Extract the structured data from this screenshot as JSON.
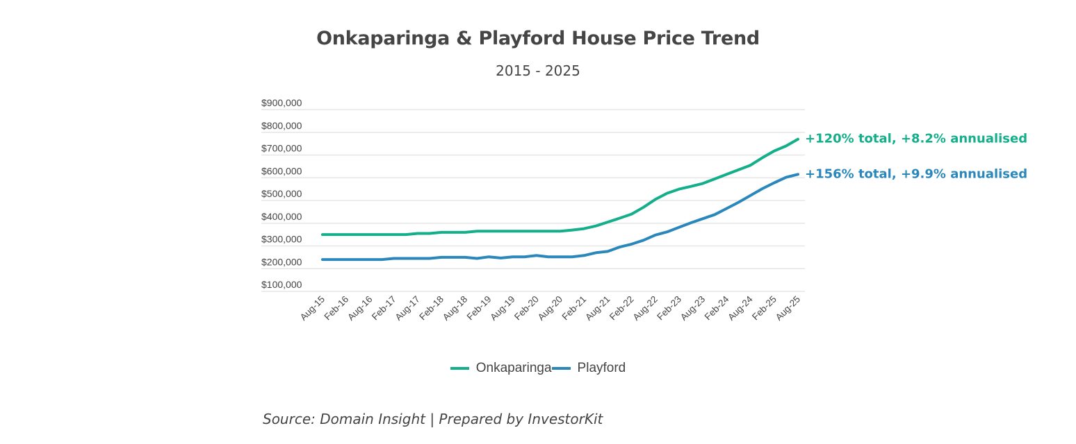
{
  "chart_data": {
    "type": "line",
    "title": "Onkaparinga & Playford House Price Trend",
    "subtitle": "2015 - 2025",
    "xlabel": "",
    "ylabel": "",
    "ylim": [
      100000,
      900000
    ],
    "yticks": [
      900000,
      800000,
      700000,
      600000,
      500000,
      400000,
      300000,
      200000,
      100000
    ],
    "ytick_labels": [
      "$900,000",
      "$800,000",
      "$700,000",
      "$600,000",
      "$500,000",
      "$400,000",
      "$300,000",
      "$200,000",
      "$100,000"
    ],
    "grid": true,
    "legend_position": "bottom-center",
    "x_tick_labels": [
      "Aug-15",
      "Feb-16",
      "Aug-16",
      "Feb-17",
      "Aug-17",
      "Feb-18",
      "Aug-18",
      "Feb-19",
      "Aug-19",
      "Feb-20",
      "Aug-20",
      "Feb-21",
      "Aug-21",
      "Feb-22",
      "Aug-22",
      "Feb-23",
      "Aug-23",
      "Feb-24",
      "Aug-24",
      "Feb-25",
      "Aug-25"
    ],
    "x_points_per_tick": 2,
    "series": [
      {
        "name": "Onkaparinga",
        "color": "#13ae8a",
        "annotation": "+120% total, +8.2% annualised",
        "values": [
          350000,
          350000,
          350000,
          350000,
          350000,
          350000,
          350000,
          350000,
          355000,
          355000,
          360000,
          360000,
          360000,
          365000,
          365000,
          365000,
          365000,
          365000,
          365000,
          365000,
          365000,
          370000,
          376000,
          388000,
          405000,
          422000,
          440000,
          470000,
          505000,
          532000,
          550000,
          562000,
          575000,
          595000,
          615000,
          635000,
          655000,
          688000,
          718000,
          740000,
          770000
        ]
      },
      {
        "name": "Playford",
        "color": "#2a87bb",
        "annotation": "+156% total, +9.9% annualised",
        "values": [
          240000,
          240000,
          240000,
          240000,
          240000,
          240000,
          245000,
          245000,
          245000,
          245000,
          250000,
          250000,
          250000,
          245000,
          252000,
          247000,
          252000,
          252000,
          258000,
          252000,
          252000,
          252000,
          258000,
          270000,
          276000,
          295000,
          308000,
          325000,
          348000,
          362000,
          382000,
          402000,
          420000,
          438000,
          465000,
          492000,
          522000,
          552000,
          578000,
          602000,
          615000
        ]
      }
    ]
  },
  "footer": {
    "source": "Source: Domain Insight | Prepared by InvestorKit"
  }
}
